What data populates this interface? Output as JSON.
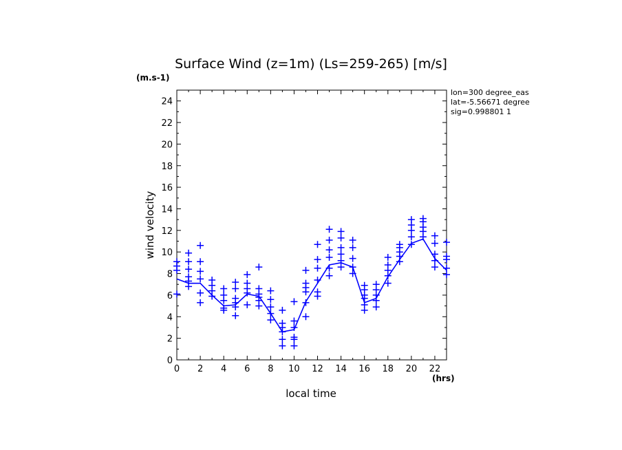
{
  "chart_data": {
    "type": "scatter",
    "title": "Surface Wind (z=1m) (Ls=259-265) [m/s]",
    "y_unit": "(m.s-1)",
    "x_unit": "(hrs)",
    "xlabel": "local time",
    "ylabel": "wind velocity",
    "xlim": [
      0,
      23
    ],
    "ylim": [
      0,
      25
    ],
    "x_ticks": [
      0,
      2,
      4,
      6,
      8,
      10,
      12,
      14,
      16,
      18,
      20,
      22
    ],
    "y_ticks": [
      0,
      2,
      4,
      6,
      8,
      10,
      12,
      14,
      16,
      18,
      20,
      22,
      24
    ],
    "info_lines": [
      "lon=300 degree_eas",
      "lat=-5.56671 degree",
      "sig=0.998801 1"
    ],
    "color": "#0000ff",
    "line": {
      "x": [
        0,
        1,
        2,
        3,
        4,
        5,
        6,
        7,
        8,
        9,
        10,
        11,
        12,
        13,
        14,
        15,
        16,
        17,
        18,
        19,
        20,
        21,
        22,
        23
      ],
      "y": [
        7.5,
        7.1,
        7.1,
        6.0,
        5.0,
        5.1,
        6.1,
        5.9,
        4.3,
        2.6,
        2.8,
        5.4,
        7.1,
        8.8,
        9.0,
        8.6,
        5.3,
        5.7,
        7.7,
        9.3,
        10.8,
        11.2,
        9.4,
        8.3
      ]
    },
    "points": [
      [
        0,
        6.1
      ],
      [
        0,
        8.3
      ],
      [
        0,
        8.7
      ],
      [
        0,
        9.1
      ],
      [
        1,
        6.8
      ],
      [
        1,
        7.3
      ],
      [
        1,
        7.7
      ],
      [
        1,
        8.4
      ],
      [
        1,
        9.1
      ],
      [
        1,
        9.9
      ],
      [
        2,
        5.3
      ],
      [
        2,
        6.2
      ],
      [
        2,
        7.5
      ],
      [
        2,
        8.2
      ],
      [
        2,
        9.1
      ],
      [
        2,
        10.6
      ],
      [
        3,
        5.9
      ],
      [
        3,
        6.4
      ],
      [
        3,
        6.9
      ],
      [
        3,
        7.4
      ],
      [
        4,
        4.6
      ],
      [
        4,
        4.8
      ],
      [
        4,
        5.5
      ],
      [
        4,
        6.0
      ],
      [
        4,
        6.6
      ],
      [
        5,
        4.1
      ],
      [
        5,
        4.9
      ],
      [
        5,
        5.3
      ],
      [
        5,
        5.7
      ],
      [
        5,
        6.6
      ],
      [
        5,
        7.2
      ],
      [
        6,
        5.1
      ],
      [
        6,
        6.2
      ],
      [
        6,
        6.6
      ],
      [
        6,
        7.1
      ],
      [
        6,
        7.9
      ],
      [
        7,
        5.0
      ],
      [
        7,
        5.5
      ],
      [
        7,
        5.8
      ],
      [
        7,
        6.1
      ],
      [
        7,
        6.6
      ],
      [
        7,
        8.6
      ],
      [
        8,
        3.7
      ],
      [
        8,
        4.3
      ],
      [
        8,
        4.9
      ],
      [
        8,
        5.6
      ],
      [
        8,
        6.4
      ],
      [
        9,
        1.3
      ],
      [
        9,
        1.9
      ],
      [
        9,
        2.6
      ],
      [
        9,
        3.0
      ],
      [
        9,
        3.4
      ],
      [
        9,
        4.6
      ],
      [
        10,
        1.3
      ],
      [
        10,
        1.9
      ],
      [
        10,
        2.1
      ],
      [
        10,
        3.0
      ],
      [
        10,
        3.6
      ],
      [
        10,
        5.4
      ],
      [
        11,
        4.0
      ],
      [
        11,
        5.3
      ],
      [
        11,
        6.3
      ],
      [
        11,
        6.7
      ],
      [
        11,
        7.1
      ],
      [
        11,
        8.3
      ],
      [
        12,
        5.9
      ],
      [
        12,
        6.3
      ],
      [
        12,
        7.4
      ],
      [
        12,
        8.5
      ],
      [
        12,
        9.3
      ],
      [
        12,
        10.7
      ],
      [
        13,
        7.8
      ],
      [
        13,
        8.5
      ],
      [
        13,
        9.5
      ],
      [
        13,
        10.2
      ],
      [
        13,
        11.1
      ],
      [
        13,
        12.1
      ],
      [
        14,
        8.6
      ],
      [
        14,
        9.2
      ],
      [
        14,
        9.8
      ],
      [
        14,
        10.4
      ],
      [
        14,
        11.3
      ],
      [
        14,
        11.9
      ],
      [
        15,
        8.0
      ],
      [
        15,
        8.6
      ],
      [
        15,
        9.4
      ],
      [
        15,
        10.4
      ],
      [
        15,
        11.1
      ],
      [
        16,
        4.6
      ],
      [
        16,
        5.1
      ],
      [
        16,
        5.7
      ],
      [
        16,
        6.0
      ],
      [
        16,
        6.5
      ],
      [
        16,
        6.9
      ],
      [
        17,
        4.9
      ],
      [
        17,
        5.5
      ],
      [
        17,
        6.0
      ],
      [
        17,
        6.5
      ],
      [
        17,
        7.0
      ],
      [
        18,
        7.1
      ],
      [
        18,
        7.8
      ],
      [
        18,
        8.3
      ],
      [
        18,
        8.8
      ],
      [
        18,
        9.5
      ],
      [
        19,
        9.1
      ],
      [
        19,
        9.6
      ],
      [
        19,
        10.0
      ],
      [
        19,
        10.4
      ],
      [
        19,
        10.7
      ],
      [
        20,
        10.7
      ],
      [
        20,
        11.4
      ],
      [
        20,
        12.0
      ],
      [
        20,
        12.5
      ],
      [
        20,
        13.0
      ],
      [
        21,
        11.4
      ],
      [
        21,
        11.9
      ],
      [
        21,
        12.3
      ],
      [
        21,
        12.8
      ],
      [
        21,
        13.1
      ],
      [
        22,
        8.6
      ],
      [
        22,
        9.2
      ],
      [
        22,
        9.8
      ],
      [
        22,
        10.8
      ],
      [
        22,
        11.5
      ],
      [
        23,
        7.9
      ],
      [
        23,
        8.5
      ],
      [
        23,
        9.3
      ],
      [
        23,
        9.6
      ],
      [
        23,
        10.9
      ]
    ]
  }
}
